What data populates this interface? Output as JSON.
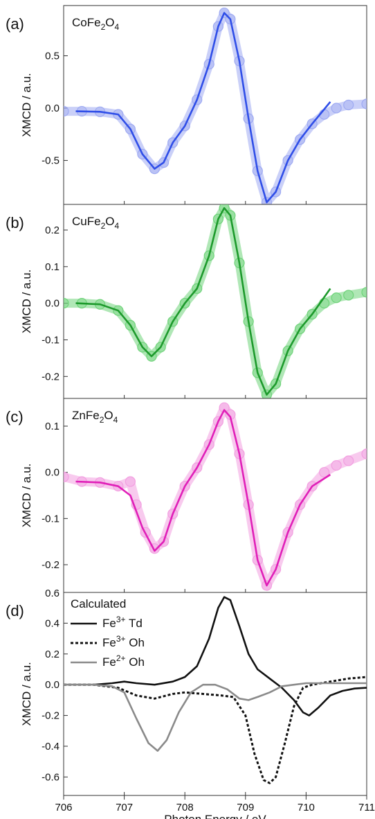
{
  "x_label": "Photon Energy / eV",
  "x_ticks": [
    706,
    707,
    708,
    709,
    710,
    711
  ],
  "xlim": [
    706,
    711
  ],
  "chart_data": [
    {
      "type": "scatter+line",
      "panel": "(a)",
      "annotation_main": "CoFe",
      "annotation_sub1": "2",
      "annotation_mid": "O",
      "annotation_sub2": "4",
      "ylabel": "XMCD / a.u.",
      "ylim": [
        -0.92,
        0.98
      ],
      "yticks": [
        0.5,
        0.0,
        -0.5
      ],
      "ytick_labels": [
        "0.5",
        "0.0",
        "-0.5"
      ],
      "color_fit": "#2f4ee8",
      "color_exp": "#9eaaf2",
      "exp": [
        [
          706.0,
          -0.03
        ],
        [
          706.3,
          -0.03
        ],
        [
          706.6,
          -0.035
        ],
        [
          706.9,
          -0.06
        ],
        [
          707.1,
          -0.2
        ],
        [
          707.3,
          -0.44
        ],
        [
          707.5,
          -0.58
        ],
        [
          707.65,
          -0.52
        ],
        [
          707.8,
          -0.33
        ],
        [
          708.0,
          -0.17
        ],
        [
          708.2,
          0.08
        ],
        [
          708.4,
          0.42
        ],
        [
          708.55,
          0.78
        ],
        [
          708.65,
          0.91
        ],
        [
          708.75,
          0.85
        ],
        [
          708.9,
          0.45
        ],
        [
          709.05,
          -0.1
        ],
        [
          709.2,
          -0.6
        ],
        [
          709.35,
          -0.9
        ],
        [
          709.5,
          -0.8
        ],
        [
          709.7,
          -0.5
        ],
        [
          709.9,
          -0.3
        ],
        [
          710.1,
          -0.15
        ],
        [
          710.3,
          -0.06
        ],
        [
          710.5,
          0.0
        ],
        [
          710.7,
          0.03
        ],
        [
          711.0,
          0.04
        ]
      ],
      "fit": [
        [
          706.2,
          -0.03
        ],
        [
          706.6,
          -0.035
        ],
        [
          706.9,
          -0.06
        ],
        [
          707.1,
          -0.2
        ],
        [
          707.3,
          -0.44
        ],
        [
          707.5,
          -0.58
        ],
        [
          707.65,
          -0.52
        ],
        [
          707.8,
          -0.33
        ],
        [
          708.0,
          -0.17
        ],
        [
          708.2,
          0.08
        ],
        [
          708.4,
          0.42
        ],
        [
          708.55,
          0.78
        ],
        [
          708.65,
          0.91
        ],
        [
          708.75,
          0.85
        ],
        [
          708.9,
          0.45
        ],
        [
          709.05,
          -0.1
        ],
        [
          709.2,
          -0.6
        ],
        [
          709.35,
          -0.9
        ],
        [
          709.5,
          -0.8
        ],
        [
          709.7,
          -0.5
        ],
        [
          709.9,
          -0.3
        ],
        [
          710.1,
          -0.15
        ],
        [
          710.4,
          0.06
        ]
      ]
    },
    {
      "type": "scatter+line",
      "panel": "(b)",
      "annotation_main": "CuFe",
      "annotation_sub1": "2",
      "annotation_mid": "O",
      "annotation_sub2": "4",
      "ylabel": "XMCD / a.u.",
      "ylim": [
        -0.26,
        0.27
      ],
      "yticks": [
        0.2,
        0.1,
        0.0,
        -0.1,
        -0.2
      ],
      "ytick_labels": [
        "0.2",
        "0.1",
        "0.0",
        "-0.1",
        "-0.2"
      ],
      "color_fit": "#1d9a2c",
      "color_exp": "#6fd37a",
      "exp": [
        [
          706.0,
          0.0
        ],
        [
          706.3,
          0.0
        ],
        [
          706.6,
          -0.003
        ],
        [
          706.9,
          -0.02
        ],
        [
          707.1,
          -0.06
        ],
        [
          707.3,
          -0.12
        ],
        [
          707.45,
          -0.145
        ],
        [
          707.6,
          -0.12
        ],
        [
          707.8,
          -0.05
        ],
        [
          708.0,
          0.0
        ],
        [
          708.2,
          0.04
        ],
        [
          708.4,
          0.13
        ],
        [
          708.55,
          0.23
        ],
        [
          708.65,
          0.26
        ],
        [
          708.75,
          0.24
        ],
        [
          708.9,
          0.11
        ],
        [
          709.05,
          -0.05
        ],
        [
          709.2,
          -0.19
        ],
        [
          709.35,
          -0.25
        ],
        [
          709.5,
          -0.22
        ],
        [
          709.7,
          -0.13
        ],
        [
          709.9,
          -0.07
        ],
        [
          710.1,
          -0.03
        ],
        [
          710.3,
          0.0
        ],
        [
          710.5,
          0.015
        ],
        [
          710.7,
          0.022
        ],
        [
          711.0,
          0.03
        ]
      ],
      "fit": [
        [
          706.2,
          0.0
        ],
        [
          706.6,
          -0.003
        ],
        [
          706.9,
          -0.02
        ],
        [
          707.1,
          -0.06
        ],
        [
          707.3,
          -0.12
        ],
        [
          707.45,
          -0.145
        ],
        [
          707.6,
          -0.12
        ],
        [
          707.8,
          -0.05
        ],
        [
          708.0,
          0.0
        ],
        [
          708.2,
          0.04
        ],
        [
          708.4,
          0.13
        ],
        [
          708.55,
          0.23
        ],
        [
          708.65,
          0.26
        ],
        [
          708.75,
          0.24
        ],
        [
          708.9,
          0.11
        ],
        [
          709.05,
          -0.05
        ],
        [
          709.2,
          -0.19
        ],
        [
          709.35,
          -0.25
        ],
        [
          709.5,
          -0.22
        ],
        [
          709.7,
          -0.13
        ],
        [
          709.9,
          -0.07
        ],
        [
          710.1,
          -0.03
        ],
        [
          710.4,
          0.04
        ]
      ]
    },
    {
      "type": "scatter+line",
      "panel": "(c)",
      "annotation_main": "ZnFe",
      "annotation_sub1": "2",
      "annotation_mid": "O",
      "annotation_sub2": "4",
      "ylabel": "XMCD / a.u.",
      "ylim": [
        -0.26,
        0.16
      ],
      "yticks": [
        0.1,
        0.0,
        -0.1,
        -0.2
      ],
      "ytick_labels": [
        "0.1",
        "0.0",
        "-0.1",
        "-0.2"
      ],
      "color_fit": "#e01fb8",
      "color_exp": "#f29ee0",
      "exp": [
        [
          706.0,
          -0.01
        ],
        [
          706.3,
          -0.02
        ],
        [
          706.6,
          -0.022
        ],
        [
          706.9,
          -0.03
        ],
        [
          707.1,
          -0.02
        ],
        [
          707.2,
          -0.07
        ],
        [
          707.35,
          -0.13
        ],
        [
          707.5,
          -0.165
        ],
        [
          707.65,
          -0.15
        ],
        [
          707.8,
          -0.09
        ],
        [
          708.0,
          -0.03
        ],
        [
          708.2,
          0.01
        ],
        [
          708.4,
          0.06
        ],
        [
          708.55,
          0.11
        ],
        [
          708.65,
          0.14
        ],
        [
          708.75,
          0.125
        ],
        [
          708.9,
          0.04
        ],
        [
          709.05,
          -0.07
        ],
        [
          709.2,
          -0.19
        ],
        [
          709.35,
          -0.245
        ],
        [
          709.5,
          -0.21
        ],
        [
          709.7,
          -0.13
        ],
        [
          709.9,
          -0.07
        ],
        [
          710.1,
          -0.03
        ],
        [
          710.3,
          0.0
        ],
        [
          710.5,
          0.015
        ],
        [
          710.7,
          0.025
        ],
        [
          711.0,
          0.04
        ]
      ],
      "fit": [
        [
          706.2,
          -0.02
        ],
        [
          706.6,
          -0.022
        ],
        [
          706.9,
          -0.03
        ],
        [
          707.1,
          -0.05
        ],
        [
          707.3,
          -0.12
        ],
        [
          707.5,
          -0.17
        ],
        [
          707.65,
          -0.15
        ],
        [
          707.8,
          -0.09
        ],
        [
          708.0,
          -0.03
        ],
        [
          708.2,
          0.01
        ],
        [
          708.4,
          0.06
        ],
        [
          708.55,
          0.11
        ],
        [
          708.65,
          0.135
        ],
        [
          708.75,
          0.12
        ],
        [
          708.9,
          0.04
        ],
        [
          709.05,
          -0.07
        ],
        [
          709.2,
          -0.19
        ],
        [
          709.35,
          -0.245
        ],
        [
          709.5,
          -0.21
        ],
        [
          709.7,
          -0.13
        ],
        [
          709.9,
          -0.07
        ],
        [
          710.1,
          -0.03
        ],
        [
          710.4,
          -0.005
        ]
      ]
    },
    {
      "type": "line",
      "panel": "(d)",
      "legend_title": "Calculated",
      "ylabel": "XMCD / a.u.",
      "ylim": [
        -0.72,
        0.6
      ],
      "yticks": [
        0.4,
        0.2,
        0.0,
        -0.2,
        -0.4,
        -0.6
      ],
      "ytick_labels": [
        "0.4",
        "0.2",
        "0.0",
        "-0.2",
        "-0.4",
        "-0.6"
      ],
      "top_tick_label": "0.6",
      "series": [
        {
          "name_main": "Fe",
          "name_sup": "3+",
          "name_rest": " Td",
          "color": "#111111",
          "style": "solid",
          "points": [
            [
              706.0,
              0.0
            ],
            [
              706.5,
              0.0
            ],
            [
              706.8,
              0.01
            ],
            [
              707.0,
              0.02
            ],
            [
              707.2,
              0.01
            ],
            [
              707.5,
              0.0
            ],
            [
              707.8,
              0.02
            ],
            [
              708.0,
              0.05
            ],
            [
              708.2,
              0.12
            ],
            [
              708.4,
              0.3
            ],
            [
              708.55,
              0.5
            ],
            [
              708.65,
              0.57
            ],
            [
              708.75,
              0.55
            ],
            [
              708.9,
              0.38
            ],
            [
              709.05,
              0.2
            ],
            [
              709.2,
              0.1
            ],
            [
              709.4,
              0.04
            ],
            [
              709.6,
              -0.02
            ],
            [
              709.8,
              -0.1
            ],
            [
              709.95,
              -0.18
            ],
            [
              710.05,
              -0.2
            ],
            [
              710.2,
              -0.15
            ],
            [
              710.4,
              -0.07
            ],
            [
              710.6,
              -0.04
            ],
            [
              710.8,
              -0.025
            ],
            [
              711.0,
              -0.02
            ]
          ]
        },
        {
          "name_main": "Fe",
          "name_sup": "3+",
          "name_rest": " Oh",
          "color": "#111111",
          "style": "dotted",
          "points": [
            [
              706.0,
              0.0
            ],
            [
              706.5,
              0.0
            ],
            [
              706.9,
              -0.02
            ],
            [
              707.2,
              -0.07
            ],
            [
              707.5,
              -0.09
            ],
            [
              707.8,
              -0.06
            ],
            [
              708.0,
              -0.05
            ],
            [
              708.3,
              -0.06
            ],
            [
              708.6,
              -0.07
            ],
            [
              708.8,
              -0.08
            ],
            [
              709.0,
              -0.2
            ],
            [
              709.15,
              -0.45
            ],
            [
              709.3,
              -0.62
            ],
            [
              709.4,
              -0.64
            ],
            [
              709.5,
              -0.6
            ],
            [
              709.65,
              -0.38
            ],
            [
              709.8,
              -0.14
            ],
            [
              709.95,
              -0.02
            ],
            [
              710.1,
              0.0
            ],
            [
              710.4,
              0.02
            ],
            [
              710.7,
              0.04
            ],
            [
              711.0,
              0.05
            ]
          ]
        },
        {
          "name_main": "Fe",
          "name_sup": "2+",
          "name_rest": " Oh",
          "color": "#8a8a8a",
          "style": "solid",
          "points": [
            [
              706.0,
              0.0
            ],
            [
              706.5,
              0.0
            ],
            [
              706.8,
              -0.01
            ],
            [
              707.0,
              -0.05
            ],
            [
              707.2,
              -0.22
            ],
            [
              707.4,
              -0.38
            ],
            [
              707.55,
              -0.43
            ],
            [
              707.7,
              -0.36
            ],
            [
              707.9,
              -0.18
            ],
            [
              708.1,
              -0.05
            ],
            [
              708.3,
              0.0
            ],
            [
              708.5,
              0.0
            ],
            [
              708.7,
              -0.03
            ],
            [
              708.9,
              -0.09
            ],
            [
              709.05,
              -0.1
            ],
            [
              709.2,
              -0.08
            ],
            [
              709.4,
              -0.05
            ],
            [
              709.6,
              -0.01
            ],
            [
              709.8,
              0.0
            ],
            [
              710.0,
              0.01
            ],
            [
              710.5,
              0.01
            ],
            [
              711.0,
              0.01
            ]
          ]
        }
      ]
    }
  ]
}
